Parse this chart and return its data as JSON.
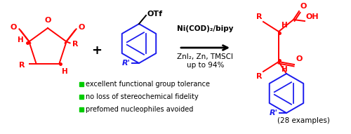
{
  "background_color": "#ffffff",
  "red_color": "#ff0000",
  "blue_color": "#1a1aee",
  "green_color": "#00cc00",
  "black_color": "#000000",
  "arrow_above1": "Ni(COD)₂/bipy",
  "arrow_above2": "ZnI₂, Zn, TMSCl",
  "arrow_above3": "up to 94%",
  "bullet1": "excellent functional group tolerance",
  "bullet2": "no loss of stereochemical fidelity",
  "bullet3": "prefomed nucleophiles avoided",
  "examples_label": "(28 examples)",
  "figsize": [
    5.0,
    1.91
  ],
  "dpi": 100
}
